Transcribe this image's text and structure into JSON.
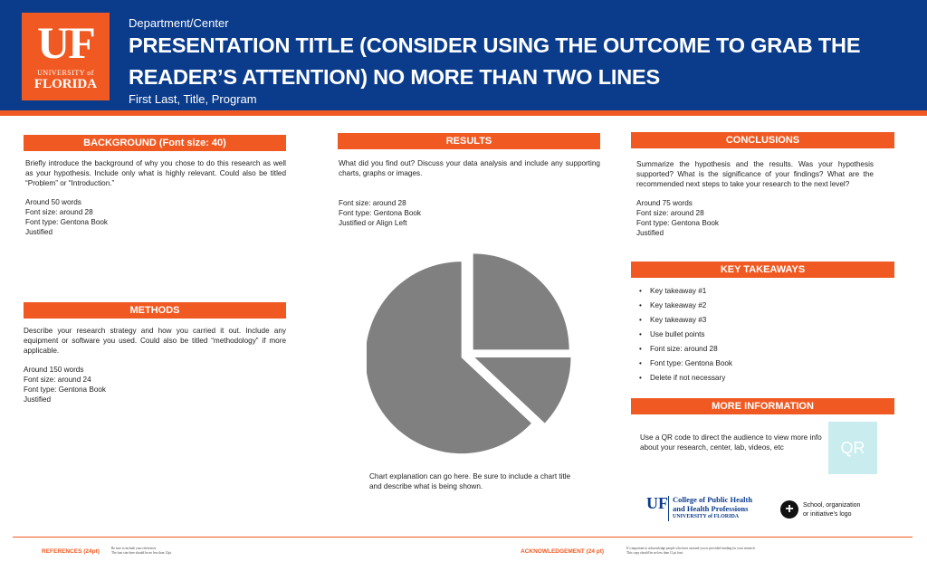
{
  "header": {
    "logo": {
      "uf": "UF",
      "university_of": "UNIVERSITY of",
      "florida": "FLORIDA"
    },
    "department": "Department/Center",
    "title": "PRESENTATION TITLE (CONSIDER USING THE OUTCOME TO GRAB THE READER’S ATTENTION) NO MORE THAN TWO LINES",
    "authors": "First Last, Title, Program"
  },
  "background": {
    "heading": "BACKGROUND (Font size: 40)",
    "paragraph": "Briefly introduce the background of why you chose to do this research as well as your hypothesis. Include only what is highly relevant. Could also be titled “Problem” or “Introduction.”",
    "lines": [
      "Around 50 words",
      "Font size: around 28",
      "Font type: Gentona Book",
      "Justified"
    ]
  },
  "methods": {
    "heading": "METHODS",
    "paragraph": "Describe your research strategy and how you carried it out. Include any equipment or software you used. Could also be titled “methodology” if more applicable.",
    "lines": [
      "Around 150 words",
      "Font size: around 24",
      "Font type: Gentona Book",
      "Justified"
    ]
  },
  "results": {
    "heading": "RESULTS",
    "paragraph": "What did you find out? Discuss your data analysis and include any supporting charts, graphs or images.",
    "lines": [
      "Font size: around 28",
      "Font type: Gentona Book",
      "Justified or Align Left"
    ],
    "caption": "Chart explanation can go here. Be sure to include a chart title and describe what is being shown."
  },
  "chart_data": {
    "type": "pie",
    "exploded": true,
    "color": "#808080",
    "values": [
      25,
      12,
      63
    ]
  },
  "conclusions": {
    "heading": "CONCLUSIONS",
    "paragraph": "Summarize the hypothesis and the results. Was your hypothesis supported? What is the significance of your findings? What are the recommended next steps to take your research to the next level?",
    "lines": [
      "Around 75 words",
      "Font size: around 28",
      "Font type: Gentona Book",
      "Justified"
    ]
  },
  "key_takeaways": {
    "heading": "KEY TAKEAWAYS",
    "bullet": "•",
    "items": [
      "Key takeaway #1",
      "Key takeaway #2",
      "Key takeaway #3",
      "Use bullet points",
      "Font size: around 28",
      "Font type: Gentona Book",
      "Delete if not necessary"
    ]
  },
  "more_information": {
    "heading": "MORE INFORMATION",
    "paragraph": "Use a QR code to direct the audience to view more info about your research, center, lab, videos, etc",
    "qr_label": "QR"
  },
  "college_logo": {
    "uf": "UF",
    "line1": "College of Public Health",
    "line2": "and Health Professions",
    "line3": "UNIVERSITY of FLORIDA"
  },
  "school_logo": {
    "icon": "plus-circle-icon",
    "text_line1": "School, organization",
    "text_line2": "or initiative’s logo"
  },
  "footer": {
    "references_label": "REFERENCES (24pt)",
    "references_note_1": "Be sure to include your references.",
    "references_note_2": "The font size here should be no less than 12pt.",
    "acknowledgement_label": "ACKNOWLEDGEMENT (24 pt)",
    "acknowledgement_note_1": "It’s important to acknowledge people who have assisted you or provided funding for your research.",
    "acknowledgement_note_2": "This copy should be no less than 12 pt font."
  },
  "colors": {
    "brand_blue": "#0b3c8c",
    "brand_orange": "#f05a22"
  }
}
